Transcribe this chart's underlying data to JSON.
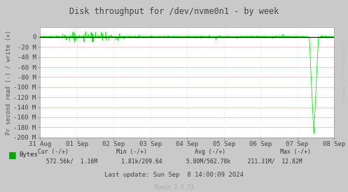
{
  "title": "Disk throughput for /dev/nvme0n1 - by week",
  "ylabel": "Pr second read (-) / write (+)",
  "ylim_min": -200,
  "ylim_max": 20,
  "ytick_vals": [
    0,
    -20,
    -40,
    -60,
    -80,
    -100,
    -120,
    -140,
    -160,
    -180,
    -200
  ],
  "ytick_labels": [
    "0",
    "-20 M",
    "-40 M",
    "-60 M",
    "-80 M",
    "-100 M",
    "-120 M",
    "-140 M",
    "-160 M",
    "-180 M",
    "-200 M"
  ],
  "xlabels": [
    "31 Aug",
    "01 Sep",
    "02 Sep",
    "03 Sep",
    "04 Sep",
    "05 Sep",
    "06 Sep",
    "07 Sep",
    "08 Sep"
  ],
  "fig_bg_color": "#c9c9c9",
  "plot_bg_color": "#ffffff",
  "grid_color_h": "#ffaaaa",
  "grid_color_v": "#ffcccc",
  "line_color": "#00ee00",
  "title_color": "#444444",
  "tick_color": "#444444",
  "legend_label": "Bytes",
  "legend_color": "#00aa00",
  "stats_header": "Cur (-/+)              Min (-/+)              Avg (-/+)                Max (-/+)",
  "stats_values": "572.56k/  1.16M       1.81k/209.64       5.80M/562.78k     211.31M/  12.82M",
  "last_update": "Last update: Sun Sep  8 14:00:09 2024",
  "munin_version": "Munin 2.0.73",
  "watermark": "RRDTOOL / TOBI OETIKER"
}
